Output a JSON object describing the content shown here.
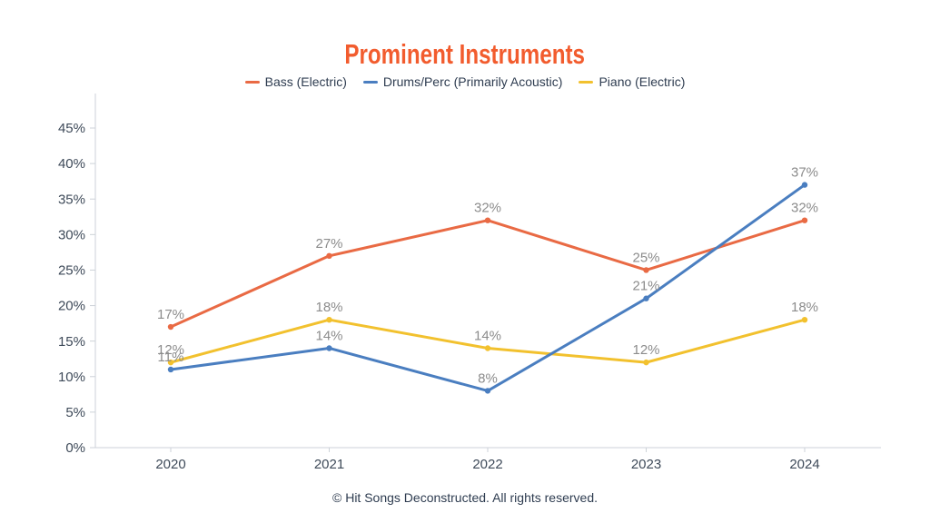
{
  "chart_data": {
    "type": "line",
    "title": "Prominent Instruments",
    "title_color": "#F25C2E",
    "categories": [
      "2020",
      "2021",
      "2022",
      "2023",
      "2024"
    ],
    "series": [
      {
        "name": "Bass (Electric)",
        "color": "#E96A44",
        "values": [
          17,
          27,
          32,
          25,
          32
        ]
      },
      {
        "name": "Drums/Perc (Primarily Acoustic)",
        "color": "#4A7EC0",
        "values": [
          11,
          14,
          8,
          21,
          37
        ]
      },
      {
        "name": "Piano (Electric)",
        "color": "#F2C12E",
        "values": [
          12,
          18,
          14,
          12,
          18
        ]
      }
    ],
    "value_suffix": "%",
    "y_ticks": [
      0,
      5,
      10,
      15,
      20,
      25,
      30,
      35,
      40,
      45
    ],
    "y_tick_labels": [
      "0%",
      "5%",
      "10%",
      "15%",
      "20%",
      "25%",
      "30%",
      "35%",
      "40%",
      "45%"
    ],
    "ylim": [
      0,
      49.8
    ],
    "xlabel": "",
    "ylabel": "",
    "grid": false,
    "legend_position": "top",
    "draw_order": [
      0,
      2,
      1
    ],
    "data_label_color": "#8C8C8C",
    "axis_text_color": "#3E4A59",
    "axis_line_color": "#CDD2D8",
    "footer": "© Hit Songs Deconstructed. All rights reserved."
  }
}
